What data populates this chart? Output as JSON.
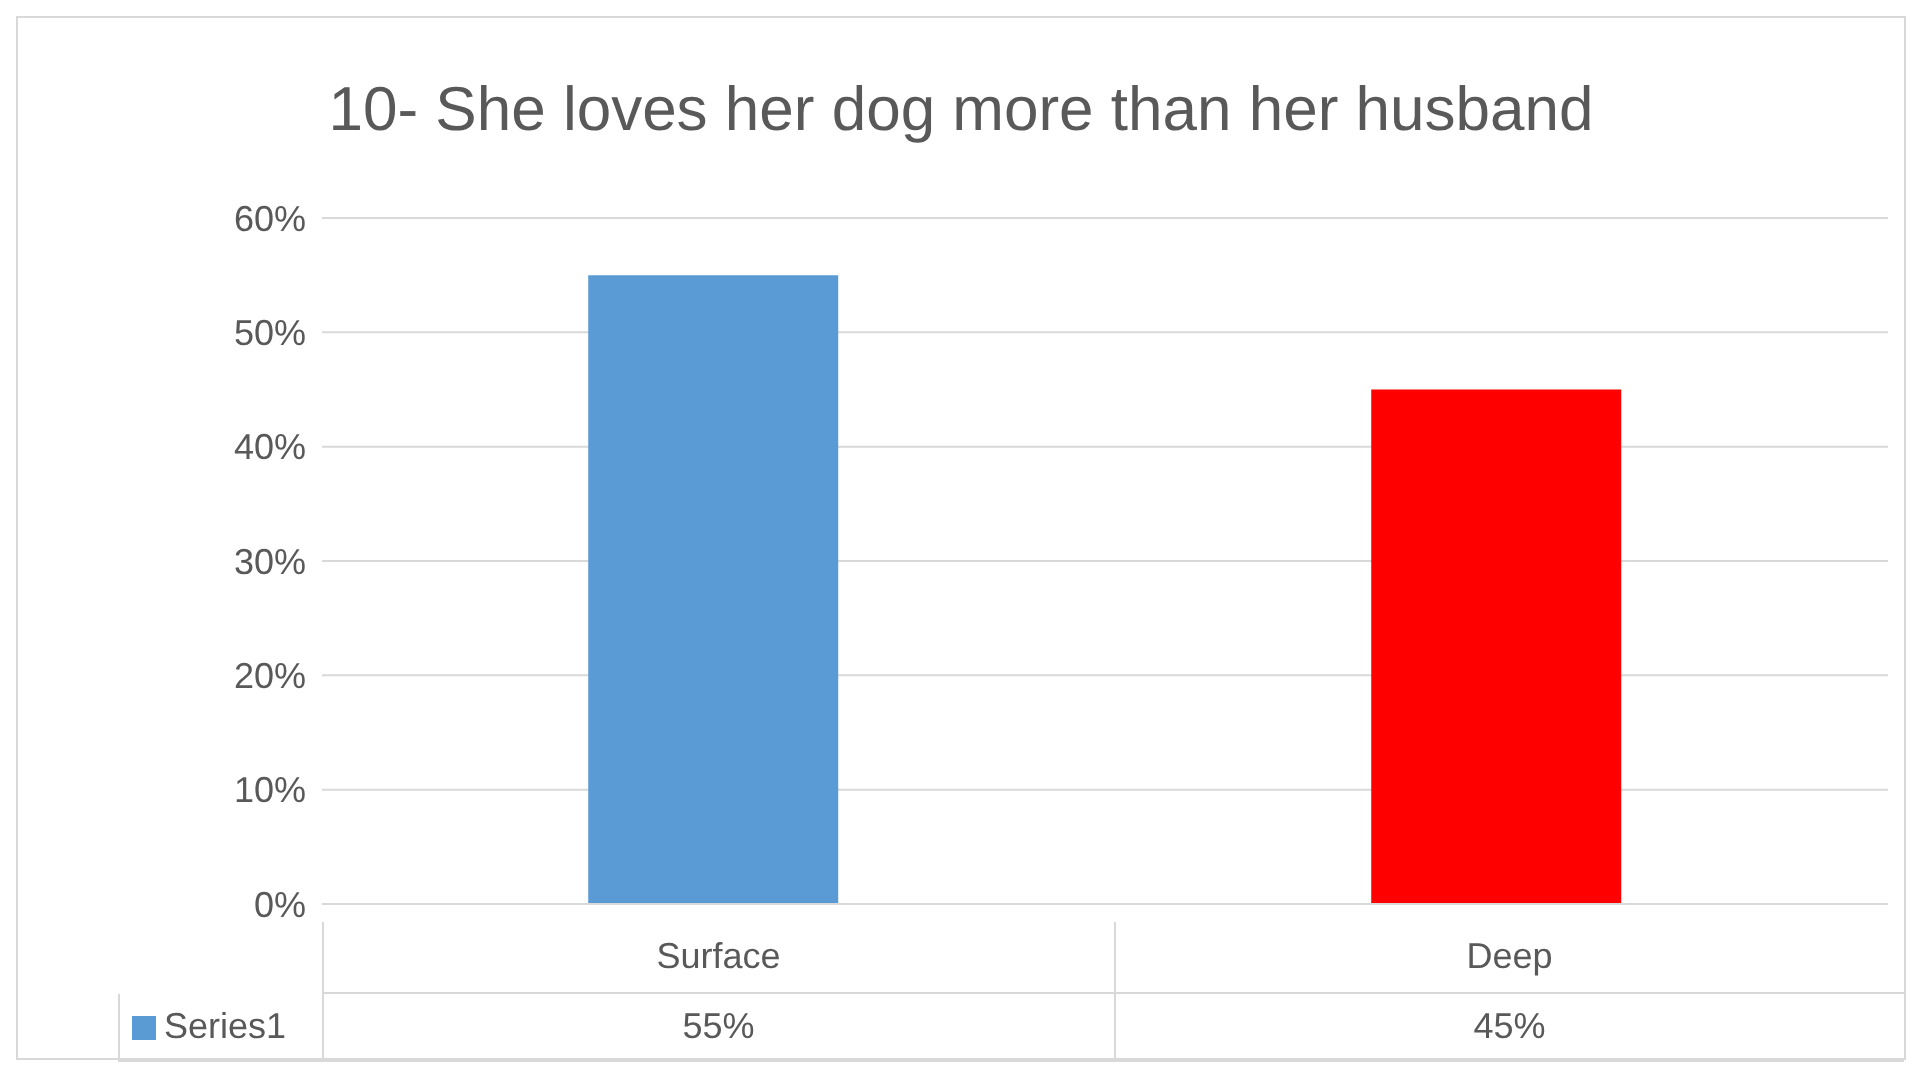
{
  "chart_data": {
    "type": "bar",
    "title": "10- She loves her dog more than her husband",
    "categories": [
      "Surface",
      "Deep"
    ],
    "series": [
      {
        "name": "Series1",
        "color": "#5b9bd5",
        "colors": [
          "#5b9bd5",
          "#ff0000"
        ],
        "values": [
          55,
          45
        ],
        "value_labels": [
          "55%",
          "45%"
        ]
      }
    ],
    "ylim": [
      0,
      60
    ],
    "yticks": [
      {
        "value": 0,
        "label": "0%"
      },
      {
        "value": 10,
        "label": "10%"
      },
      {
        "value": 20,
        "label": "20%"
      },
      {
        "value": 30,
        "label": "30%"
      },
      {
        "value": 40,
        "label": "40%"
      },
      {
        "value": 50,
        "label": "50%"
      },
      {
        "value": 60,
        "label": "60%"
      }
    ],
    "grid": "y",
    "legend": "bottom"
  }
}
